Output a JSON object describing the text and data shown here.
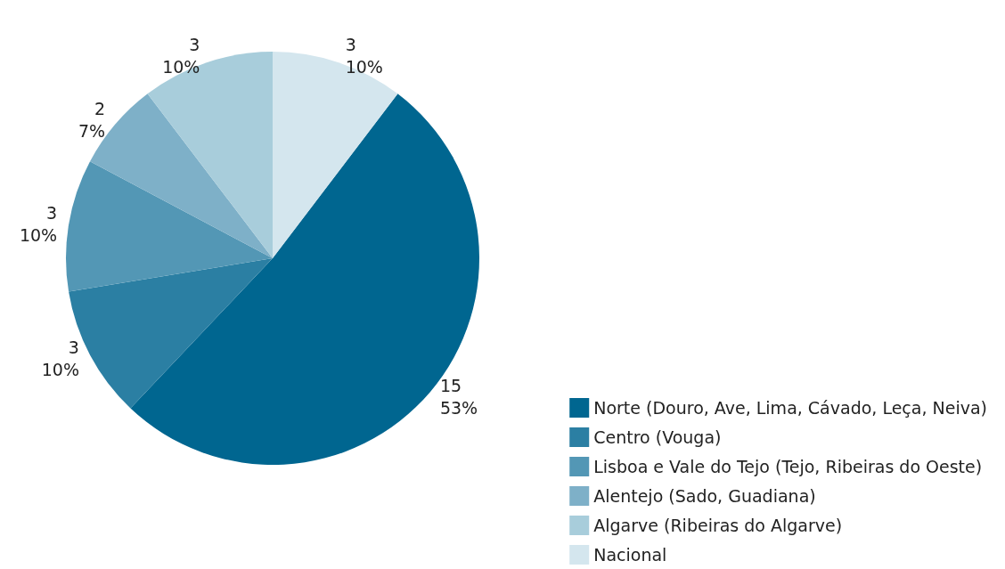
{
  "chart_data": {
    "type": "pie",
    "categories": [
      "Norte (Douro, Ave, Lima, Cávado, Leça, Neiva)",
      "Centro (Vouga)",
      "Lisboa e Vale do Tejo (Tejo, Ribeiras do Oeste)",
      "Alentejo (Sado, Guadiana)",
      "Algarve (Ribeiras do Algarve)",
      "Nacional"
    ],
    "values": [
      15,
      3,
      3,
      2,
      3,
      3
    ],
    "value_labels": [
      "15\n53%",
      "3\n10%",
      "3\n10%",
      "2\n7%",
      "3\n10%",
      "3\n10%"
    ],
    "colors": [
      "#006690",
      "#2b7fa3",
      "#5397b5",
      "#7eb0c8",
      "#a8cddb",
      "#d4e6ee"
    ],
    "legend": "bottom right"
  }
}
